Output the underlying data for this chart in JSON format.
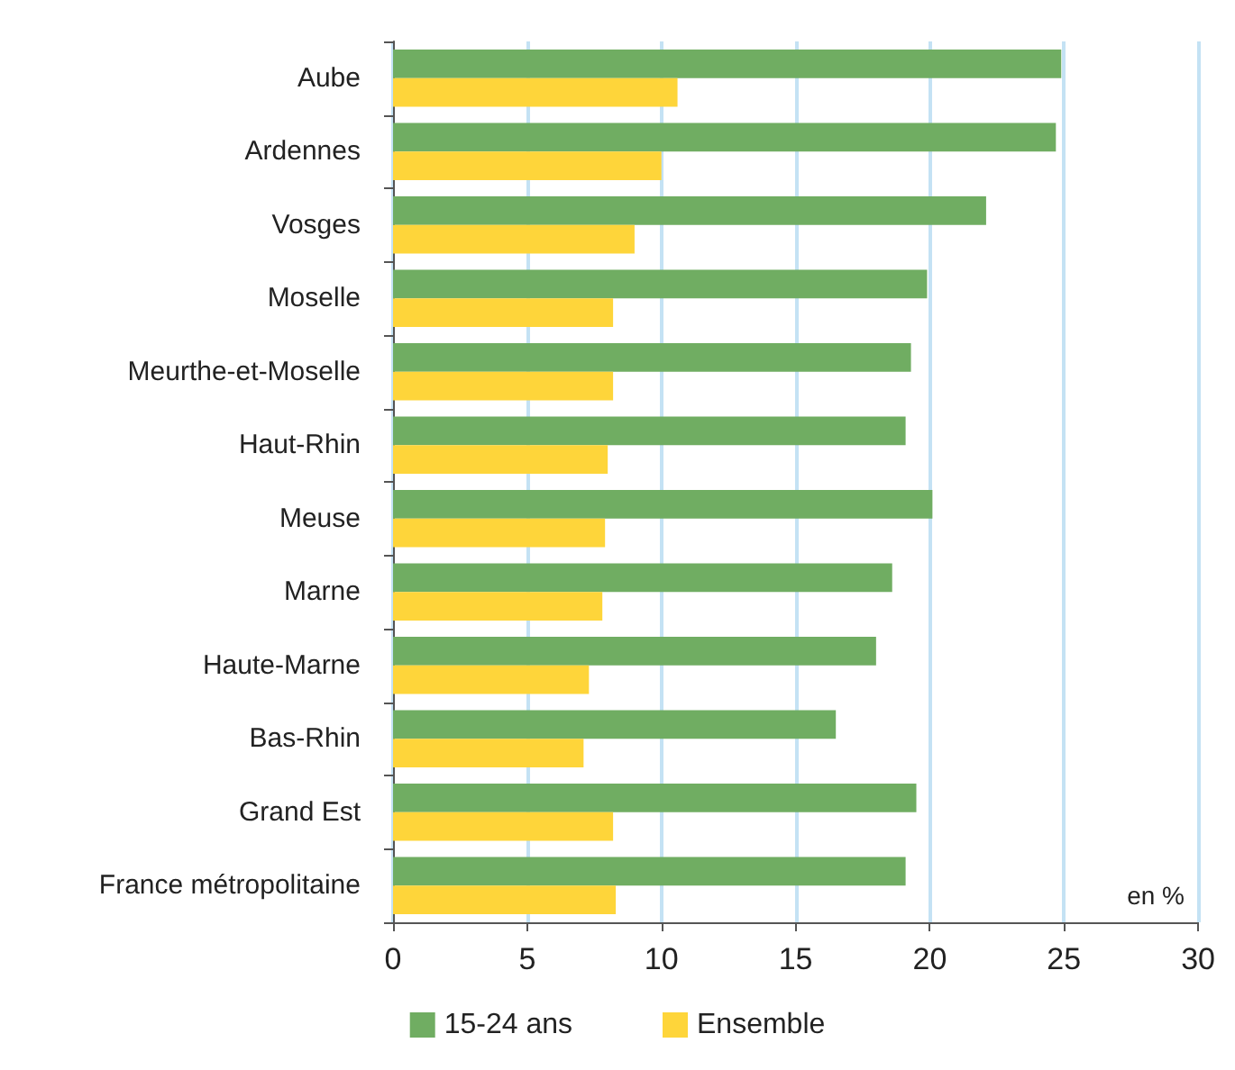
{
  "chart_data": {
    "type": "bar",
    "orientation": "horizontal",
    "categories": [
      "Aube",
      "Ardennes",
      "Vosges",
      "Moselle",
      "Meurthe-et-Moselle",
      "Haut-Rhin",
      "Meuse",
      "Marne",
      "Haute-Marne",
      "Bas-Rhin",
      "Grand Est",
      "France métropolitaine"
    ],
    "series": [
      {
        "name": "15-24 ans",
        "color": "#70ad62",
        "values": [
          24.9,
          24.7,
          22.1,
          19.9,
          19.3,
          19.1,
          20.1,
          18.6,
          18.0,
          16.5,
          19.5,
          19.1
        ]
      },
      {
        "name": "Ensemble",
        "color": "#fed53a",
        "values": [
          10.6,
          10.0,
          9.0,
          8.2,
          8.2,
          8.0,
          7.9,
          7.8,
          7.3,
          7.1,
          8.2,
          8.3
        ]
      }
    ],
    "xlim": [
      0,
      30
    ],
    "xticks": [
      0,
      5,
      10,
      15,
      20,
      25,
      30
    ],
    "grid": "x",
    "legend": "bottom",
    "annotations": [
      "en %"
    ]
  }
}
